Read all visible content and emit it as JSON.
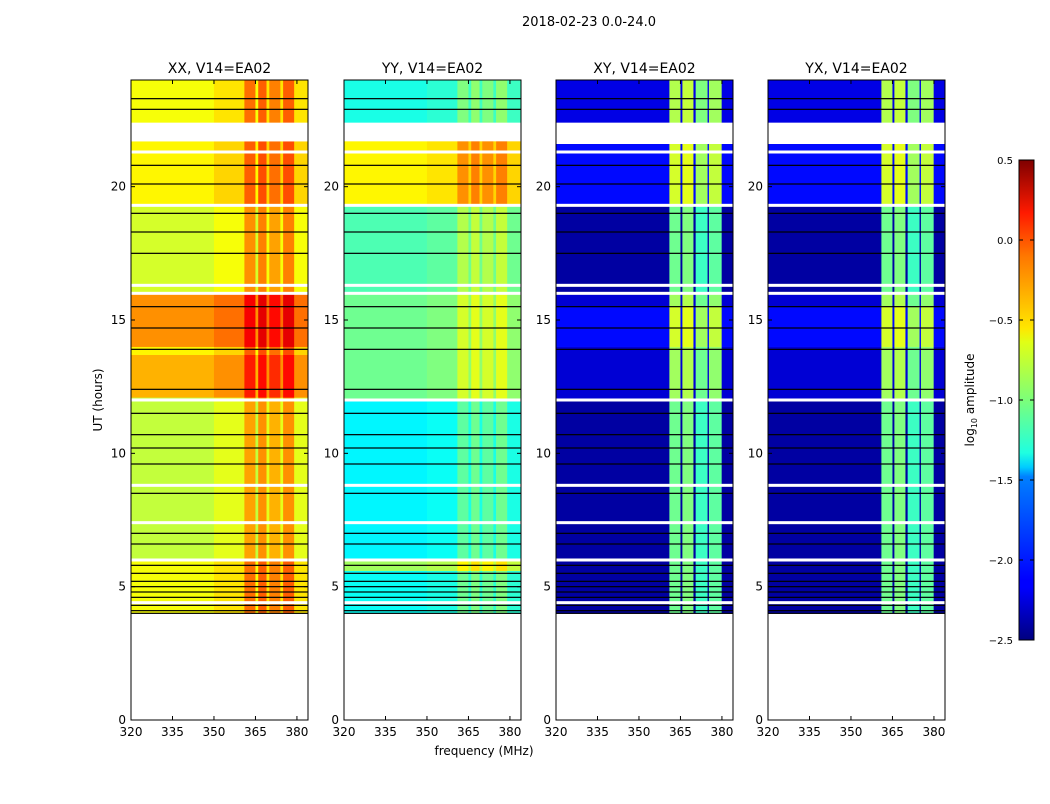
{
  "chart_data": {
    "type": "heatmap",
    "title": "2018-02-23 0.0-24.0",
    "xlabel": "frequency (MHz)",
    "ylabel": "UT (hours)",
    "xlim": [
      320,
      384
    ],
    "ylim": [
      0,
      24
    ],
    "xticks": [
      320,
      335,
      350,
      365,
      380
    ],
    "yticks": [
      0,
      5,
      10,
      15,
      20
    ],
    "colorbar": {
      "label": "log10 amplitude",
      "label_main": "log",
      "label_sub": "10",
      "label_rest": " amplitude",
      "range": [
        -2.5,
        0.5
      ],
      "ticks": [
        "0.5",
        "0.0",
        "−0.5",
        "−1.0",
        "−1.5",
        "−2.0",
        "−2.5"
      ],
      "tick_values": [
        0.5,
        0.0,
        -0.5,
        -1.0,
        -1.5,
        -2.0,
        -2.5
      ],
      "colormap": "jet"
    },
    "flagged_white_ranges": [
      [
        21.7,
        22.4
      ]
    ],
    "flagged_white_times": [
      21.3,
      19.3,
      16.3,
      16.0,
      12.0,
      8.8,
      7.4,
      6.0,
      4.4
    ],
    "flagged_black_times": [
      23.3,
      22.9,
      20.8,
      20.1,
      19.0,
      18.3,
      17.5,
      15.5,
      14.7,
      13.9,
      12.4,
      11.5,
      10.7,
      10.2,
      9.6,
      8.5,
      7.0,
      6.6,
      5.8,
      5.5,
      5.2,
      5.0,
      4.8,
      4.6,
      4.3,
      4.1,
      4.0
    ],
    "panels": [
      {
        "title": "XX, V14=EA02",
        "segments": [
          [
            4,
            6,
            -0.65
          ],
          [
            6,
            12.1,
            -0.8
          ],
          [
            12.1,
            13.7,
            -0.4
          ],
          [
            13.7,
            14,
            -0.6
          ],
          [
            14,
            16,
            -0.3
          ],
          [
            16,
            19.3,
            -0.75
          ],
          [
            19.3,
            21.7,
            -0.6
          ],
          [
            22.4,
            24,
            -0.65
          ]
        ],
        "band_offsets": [
          [
            320,
            350,
            0
          ],
          [
            350,
            361,
            0.1
          ],
          [
            361,
            365,
            0.45
          ],
          [
            365,
            366,
            0
          ],
          [
            366,
            369,
            0.5
          ],
          [
            369,
            370,
            0.1
          ],
          [
            370,
            374,
            0.4
          ],
          [
            374,
            375,
            0.1
          ],
          [
            375,
            379,
            0.5
          ],
          [
            379,
            384,
            0.1
          ]
        ]
      },
      {
        "title": "YY, V14=EA02",
        "segments": [
          [
            4,
            5.6,
            -1.35
          ],
          [
            5.6,
            6,
            -0.9
          ],
          [
            6,
            12,
            -1.4
          ],
          [
            12,
            16,
            -1.05
          ],
          [
            16,
            19.3,
            -1.15
          ],
          [
            19.3,
            21.8,
            -0.6
          ],
          [
            22.4,
            24,
            -1.3
          ]
        ],
        "band_offsets": [
          [
            320,
            350,
            0
          ],
          [
            350,
            361,
            0.05
          ],
          [
            361,
            365,
            0.3
          ],
          [
            365,
            366,
            0.1
          ],
          [
            366,
            369,
            0.35
          ],
          [
            369,
            370,
            0.1
          ],
          [
            370,
            374,
            0.3
          ],
          [
            374,
            375,
            0.1
          ],
          [
            375,
            379,
            0.35
          ],
          [
            379,
            384,
            0.1
          ]
        ]
      },
      {
        "title": "XY, V14=EA02",
        "segments": [
          [
            4,
            12,
            -2.4
          ],
          [
            12,
            14,
            -2.25
          ],
          [
            14,
            15.5,
            -2.1
          ],
          [
            15.5,
            16,
            -2.25
          ],
          [
            16,
            19.3,
            -2.4
          ],
          [
            19.3,
            21.6,
            -2.1
          ],
          [
            22.4,
            24,
            -2.2
          ]
        ],
        "band_offsets": [
          [
            320,
            361,
            0
          ],
          [
            361,
            365,
            1.35
          ],
          [
            365,
            365.7,
            0
          ],
          [
            365.7,
            369.7,
            1.4
          ],
          [
            369.7,
            370.5,
            0
          ],
          [
            370.5,
            374.8,
            1.2
          ],
          [
            374.8,
            375.3,
            0
          ],
          [
            375.3,
            379.9,
            1.3
          ],
          [
            379.9,
            384,
            0
          ]
        ]
      },
      {
        "title": "YX, V14=EA02",
        "segments": [
          [
            4,
            12,
            -2.4
          ],
          [
            12,
            14,
            -2.25
          ],
          [
            14,
            15.5,
            -2.1
          ],
          [
            15.5,
            16,
            -2.25
          ],
          [
            16,
            19.3,
            -2.4
          ],
          [
            19.3,
            21.6,
            -2.1
          ],
          [
            22.4,
            24,
            -2.2
          ]
        ],
        "band_offsets": [
          [
            320,
            361,
            0
          ],
          [
            361,
            365,
            1.35
          ],
          [
            365,
            365.7,
            0
          ],
          [
            365.7,
            369.7,
            1.4
          ],
          [
            369.7,
            370.5,
            0
          ],
          [
            370.5,
            374.8,
            1.2
          ],
          [
            374.8,
            375.3,
            0
          ],
          [
            375.3,
            379.9,
            1.3
          ],
          [
            379.9,
            384,
            0
          ]
        ]
      }
    ]
  }
}
